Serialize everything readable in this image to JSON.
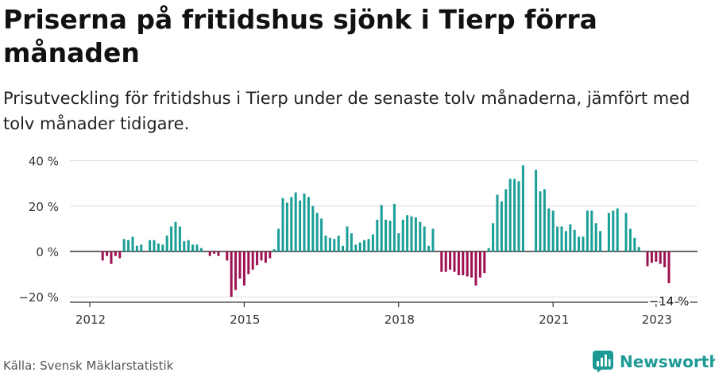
{
  "title": "Priserna på fritidshus sjönk i Tierp förra månaden",
  "subtitle": "Prisutveckling för fritidshus i Tierp under de senaste tolv månaderna, jämfört med tolv månader tidigare.",
  "source": "Källa: Svensk Mäklarstatistik",
  "brand": "Newsworthy",
  "colors": {
    "positive": "#1a9e97",
    "negative": "#9e1150",
    "brand": "#1e9a94"
  },
  "chart_data": {
    "type": "bar",
    "x_start": "2012-01",
    "x_end": "2022-12",
    "x_ticks": [
      "2012",
      "2015",
      "2018",
      "2021",
      "2023"
    ],
    "y_ticks": [
      "−20 %",
      "0 %",
      "20 %",
      "40 %"
    ],
    "ylim": [
      -20,
      40
    ],
    "annotation": "−14 %",
    "values": [
      0,
      0,
      0,
      -4,
      -2,
      -5.5,
      -2,
      -3,
      5.5,
      5,
      6.5,
      2.5,
      3,
      0,
      5,
      5,
      3.5,
      3,
      7,
      11,
      13,
      11,
      4.5,
      5,
      3,
      3,
      1.5,
      0,
      -2,
      -1,
      -2,
      0,
      -4,
      -20,
      -17,
      -12,
      -15,
      -10,
      -8,
      -6,
      -4,
      -5,
      -3,
      1,
      10,
      23.5,
      21.5,
      24,
      26,
      22.5,
      25.5,
      24,
      20,
      17,
      14.5,
      7,
      6,
      5.5,
      7,
      2.5,
      11,
      8,
      3,
      4,
      5,
      5.5,
      7.5,
      14,
      20.5,
      14,
      13.5,
      21,
      8,
      14,
      16,
      15.5,
      15,
      13,
      11,
      2.5,
      10,
      0,
      -9,
      -9,
      -8,
      -9,
      -10.5,
      -10.5,
      -11,
      -11.5,
      -15,
      -11.5,
      -9.5,
      1.5,
      12.5,
      25,
      22,
      27.5,
      32,
      32,
      31,
      38,
      0,
      0,
      36,
      26.5,
      27.5,
      19,
      18,
      11,
      11,
      9,
      12,
      9.5,
      6.5,
      6.5,
      18,
      18,
      12.5,
      9,
      0,
      17,
      18,
      19,
      0,
      17,
      10,
      6,
      2,
      0,
      -6.5,
      -5,
      -4.5,
      -5.5,
      -7,
      -14
    ]
  }
}
